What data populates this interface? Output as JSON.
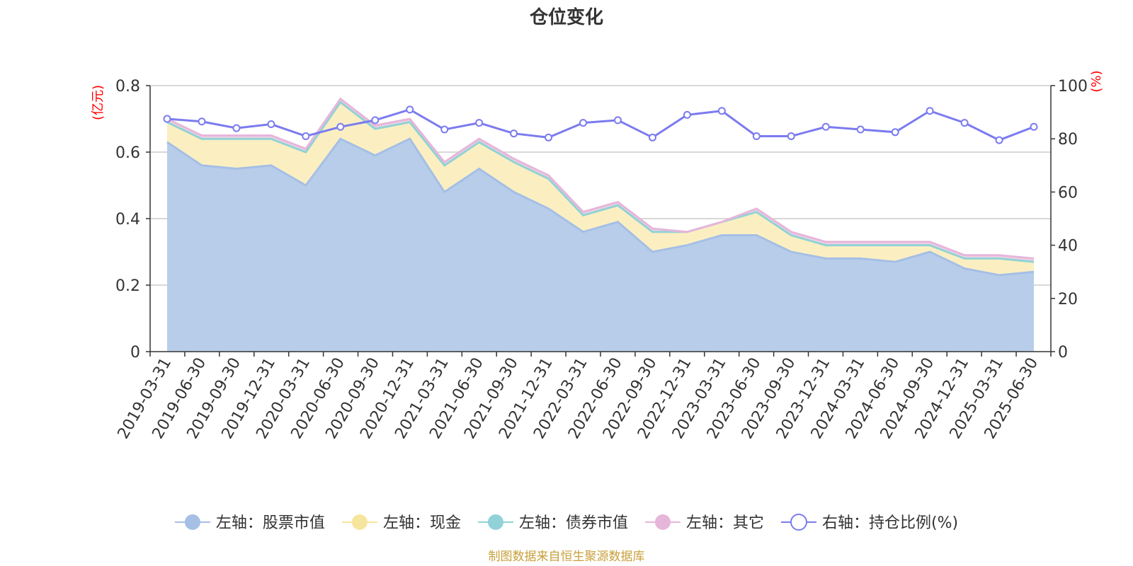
{
  "chart_data": {
    "type": "area",
    "title": "仓位变化",
    "left_axis_unit": "(亿元)",
    "right_axis_unit": "(%)",
    "categories": [
      "2019-03-31",
      "2019-06-30",
      "2019-09-30",
      "2019-12-31",
      "2020-03-31",
      "2020-06-30",
      "2020-09-30",
      "2020-12-31",
      "2021-03-31",
      "2021-06-30",
      "2021-09-30",
      "2021-12-31",
      "2022-03-31",
      "2022-06-30",
      "2022-09-30",
      "2022-12-31",
      "2023-03-31",
      "2023-06-30",
      "2023-09-30",
      "2023-12-31",
      "2024-03-31",
      "2024-06-30",
      "2024-09-30",
      "2024-12-31",
      "2025-03-31",
      "2025-06-30"
    ],
    "left_ylim": [
      0,
      0.8
    ],
    "left_ticks": [
      "0",
      "0.2",
      "0.4",
      "0.6",
      "0.8"
    ],
    "right_ylim": [
      0,
      100
    ],
    "right_ticks": [
      "0",
      "20",
      "40",
      "60",
      "80",
      "100"
    ],
    "grid": true,
    "legend_position": "bottom",
    "series": [
      {
        "name": "左轴：股票市值",
        "axis": "left",
        "stacked": true,
        "color": "#a5bfe5",
        "fill": "#b8cdea",
        "values": [
          0.63,
          0.56,
          0.55,
          0.56,
          0.5,
          0.64,
          0.59,
          0.64,
          0.48,
          0.55,
          0.48,
          0.43,
          0.36,
          0.39,
          0.3,
          0.32,
          0.35,
          0.35,
          0.3,
          0.28,
          0.28,
          0.27,
          0.3,
          0.25,
          0.23,
          0.24
        ]
      },
      {
        "name": "左轴：现金",
        "axis": "left",
        "stacked": true,
        "color": "#f7e59d",
        "fill": "#fbefc2",
        "values": [
          0.06,
          0.08,
          0.09,
          0.08,
          0.1,
          0.11,
          0.08,
          0.05,
          0.08,
          0.08,
          0.09,
          0.09,
          0.05,
          0.05,
          0.06,
          0.04,
          0.04,
          0.07,
          0.05,
          0.04,
          0.04,
          0.05,
          0.02,
          0.03,
          0.05,
          0.03
        ]
      },
      {
        "name": "左轴：债券市值",
        "axis": "left",
        "stacked": true,
        "color": "#91d2d8",
        "fill": "#91d2d8",
        "values": [
          0,
          0,
          0,
          0,
          0,
          0,
          0,
          0,
          0,
          0,
          0,
          0,
          0,
          0,
          0,
          0,
          0,
          0,
          0,
          0,
          0,
          0,
          0,
          0,
          0,
          0
        ]
      },
      {
        "name": "左轴：其它",
        "axis": "left",
        "stacked": true,
        "color": "#e6b6da",
        "fill": "#f0d2e6",
        "values": [
          0.01,
          0.01,
          0.01,
          0.01,
          0.01,
          0.01,
          0.01,
          0.01,
          0.01,
          0.01,
          0.01,
          0.01,
          0.01,
          0.01,
          0.01,
          0.0,
          0.0,
          0.01,
          0.01,
          0.01,
          0.01,
          0.01,
          0.01,
          0.01,
          0.01,
          0.01
        ]
      },
      {
        "name": "右轴：持仓比例(%)",
        "axis": "right",
        "type": "line",
        "color": "#7b7bef",
        "values": [
          87.5,
          86.5,
          84.0,
          85.5,
          81.0,
          84.5,
          87.0,
          91.0,
          83.5,
          86.0,
          82.0,
          80.5,
          86.0,
          87.0,
          80.5,
          89.0,
          90.5,
          81.0,
          81.0,
          84.5,
          83.5,
          82.5,
          90.5,
          86.0,
          79.5,
          84.5
        ]
      }
    ]
  },
  "footer": "制图数据来自恒生聚源数据库"
}
